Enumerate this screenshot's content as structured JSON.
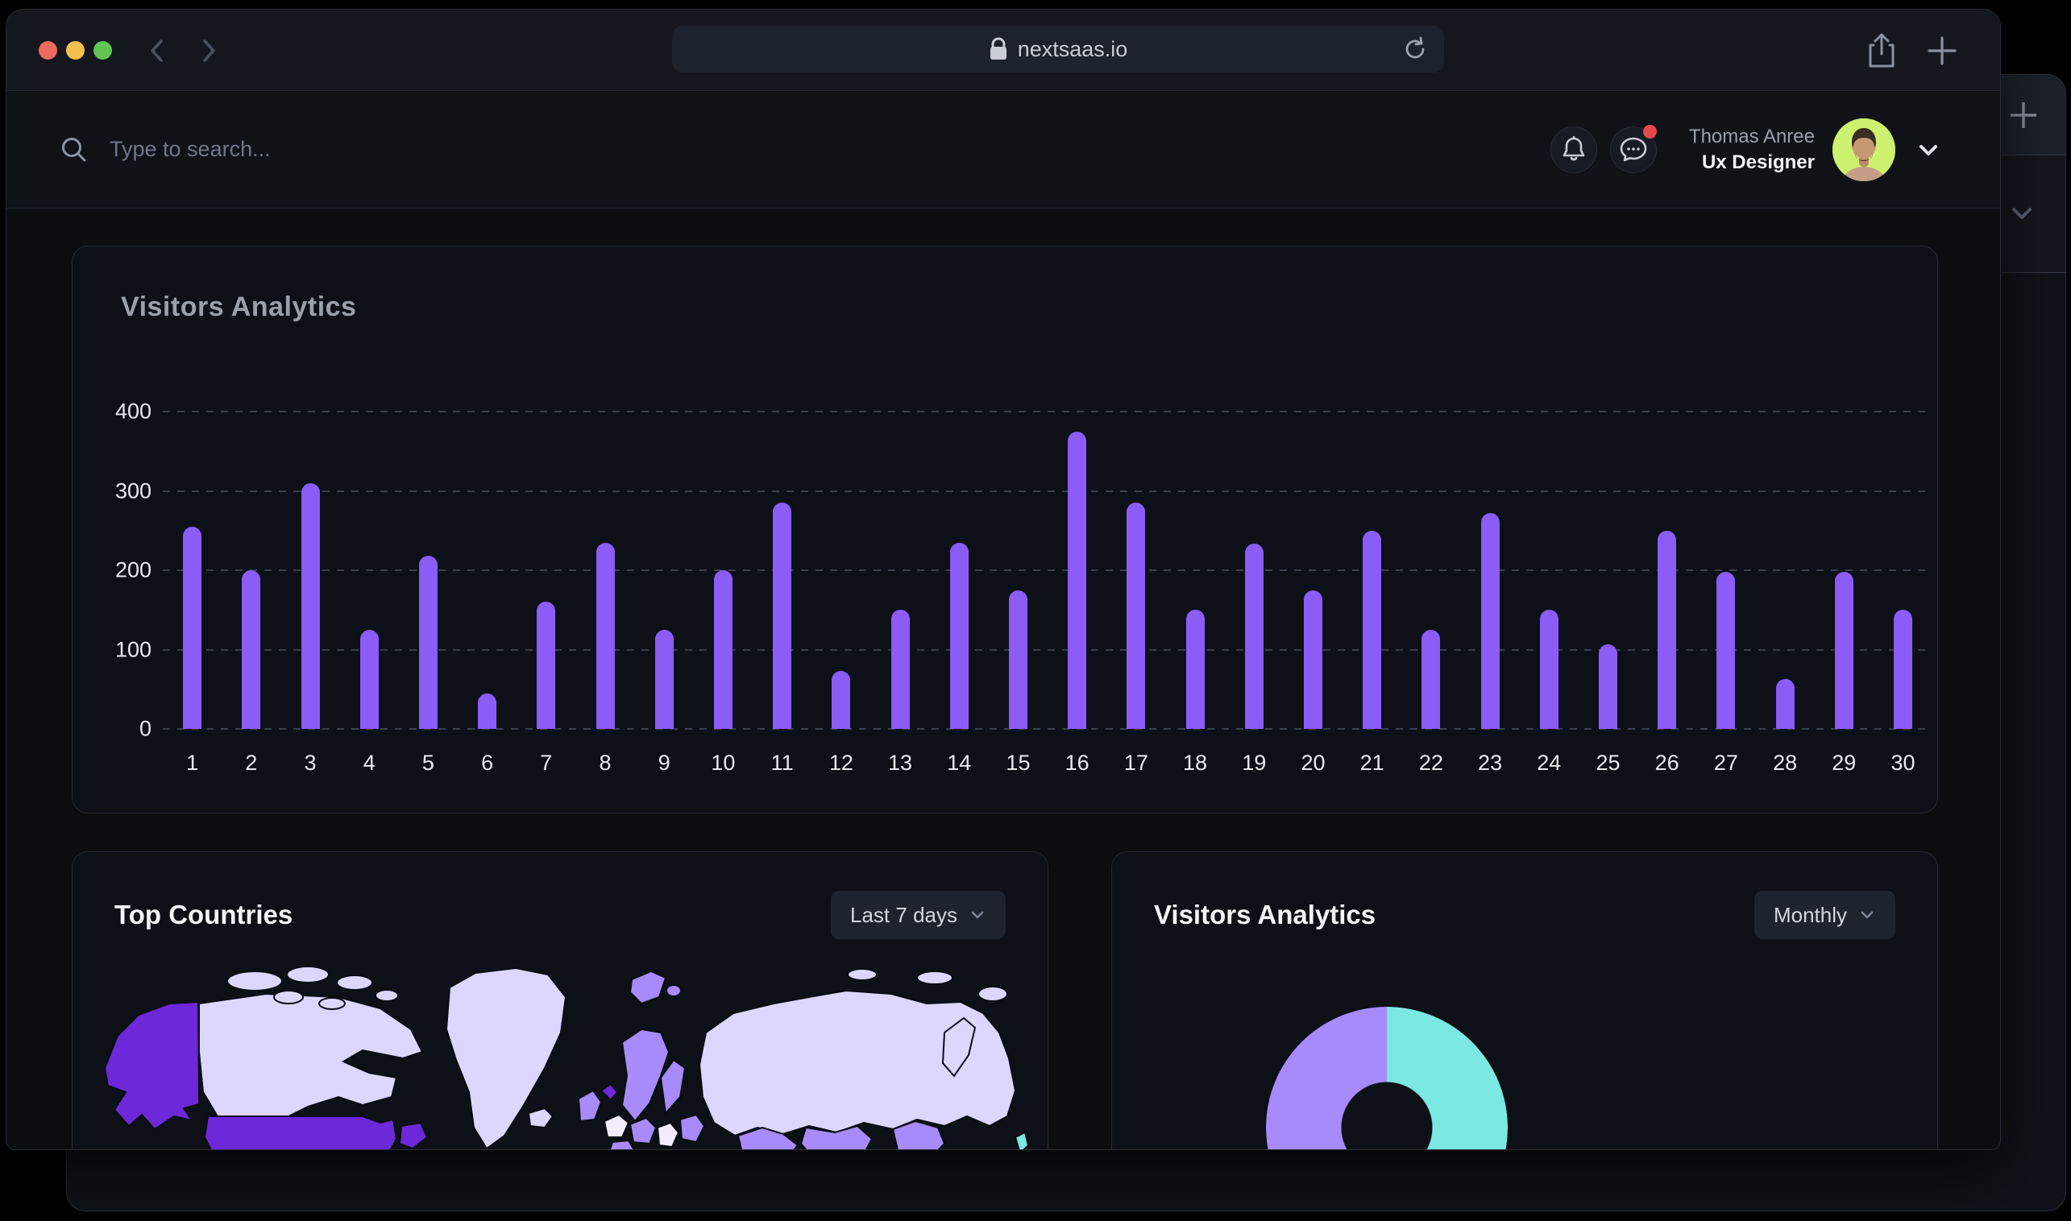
{
  "browser_chrome": {
    "url": "nextsaas.io",
    "traffic_light_colors": {
      "close": "#EE6A5F",
      "minimize": "#F5BF4F",
      "zoom": "#61C554"
    }
  },
  "back_window": {
    "plus_label": "+"
  },
  "app_header": {
    "search_placeholder": "Type to search...",
    "user_name": "Thomas Anree",
    "user_role": "Ux Designer",
    "has_notification_badge": true
  },
  "cards": {
    "visitors_bar": {
      "title": "Visitors Analytics"
    },
    "top_countries": {
      "title": "Top Countries",
      "range": "Last 7 days"
    },
    "visitors_donut": {
      "title": "Visitors Analytics",
      "range": "Monthly"
    }
  },
  "chart_data": [
    {
      "type": "bar",
      "title": "Visitors Analytics",
      "categories": [
        "1",
        "2",
        "3",
        "4",
        "5",
        "6",
        "7",
        "8",
        "9",
        "10",
        "11",
        "12",
        "13",
        "14",
        "15",
        "16",
        "17",
        "18",
        "19",
        "20",
        "21",
        "22",
        "23",
        "24",
        "25",
        "26",
        "27",
        "28",
        "29",
        "30"
      ],
      "values": [
        255,
        200,
        310,
        125,
        218,
        45,
        160,
        235,
        125,
        200,
        285,
        73,
        150,
        235,
        175,
        375,
        285,
        150,
        234,
        175,
        250,
        125,
        272,
        150,
        107,
        250,
        198,
        63,
        198,
        150
      ],
      "xlabel": "",
      "ylabel": "",
      "ylim": [
        0,
        400
      ],
      "yticks": [
        0,
        100,
        200,
        300,
        400
      ],
      "bar_color": "#8B5CF6",
      "grid": "dashed-horizontal",
      "legend": "none"
    },
    {
      "type": "pie",
      "variant": "donut",
      "title": "Visitors Analytics (Monthly)",
      "note": "only top half of donut visible; no labels shown",
      "segments": [
        {
          "color": "#7BE8E2",
          "fraction_est": 0.5
        },
        {
          "color": "#6D28D9",
          "fraction_est": 0.055
        },
        {
          "color": "#A78BFA",
          "fraction_est": 0.445
        }
      ],
      "legend": "none"
    },
    {
      "type": "heatmap",
      "variant": "choropleth-world-map",
      "title": "Top Countries",
      "note": "no numeric values or legend shown; darker purple = higher",
      "palette": {
        "pale": "#F1EDFE",
        "light": "#DDD6FE",
        "mid": "#A78BFA",
        "dark": "#6D28D9",
        "cyan": "#7BE8E2"
      }
    }
  ],
  "theme": {
    "accent": "#8B5CF6",
    "page_bg": "#0b0d11",
    "card_border": "#242a36",
    "badge_red": "#e5484d"
  }
}
